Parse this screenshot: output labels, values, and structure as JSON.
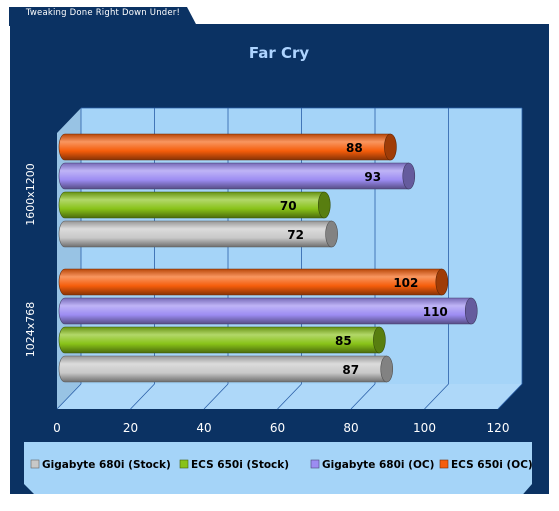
{
  "site": {
    "tagline": "Tweaking Done Right Down Under!"
  },
  "colors": {
    "panel": "#0b3263",
    "plot_area": "#a5d4f8",
    "legend_area": "#a5d4f8",
    "title_text": "#aed4ff",
    "axis_text": "#ffffff"
  },
  "chart_data": {
    "type": "bar",
    "orientation": "horizontal",
    "style": "3d-cylinder",
    "title": "Far Cry",
    "categories": [
      "1600x1200",
      "1024x768"
    ],
    "series": [
      {
        "name": "Gigabyte 680i (Stock)",
        "color": "#c8c8c8",
        "values": [
          72,
          87
        ]
      },
      {
        "name": "ECS 650i (Stock)",
        "color": "#88c218",
        "values": [
          70,
          85
        ]
      },
      {
        "name": "Gigabyte 680i (OC)",
        "color": "#9c8cf2",
        "values": [
          93,
          110
        ]
      },
      {
        "name": "ECS 650i (OC)",
        "color": "#f55d0b",
        "values": [
          88,
          102
        ]
      }
    ],
    "xlim": [
      0,
      120
    ],
    "xticks": [
      "0",
      "20",
      "40",
      "60",
      "80",
      "100",
      "120"
    ],
    "grid": true,
    "data_labels": true,
    "legend_position": "bottom"
  }
}
